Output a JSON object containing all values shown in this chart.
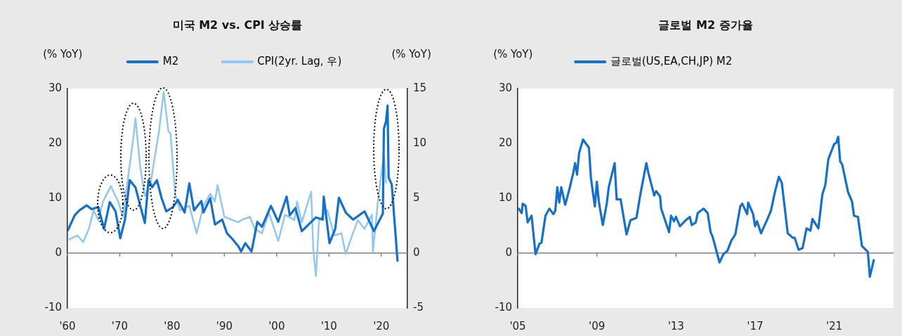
{
  "chart_data": [
    {
      "type": "line",
      "title": "미국 M2 vs. CPI 상승률",
      "ylabel": "(% YoY)",
      "y2label": "(% YoY)",
      "legend": "top",
      "xlim": [
        1960,
        2025
      ],
      "xticks": [
        {
          "value": 1960,
          "label": "'60"
        },
        {
          "value": 1970,
          "label": "'70"
        },
        {
          "value": 1980,
          "label": "'80"
        },
        {
          "value": 1990,
          "label": "'90"
        },
        {
          "value": 2000,
          "label": "'00"
        },
        {
          "value": 2010,
          "label": "'10"
        },
        {
          "value": 2020,
          "label": "'20"
        }
      ],
      "ylim": [
        -10,
        30
      ],
      "yticks": [
        -10,
        0,
        10,
        20,
        30
      ],
      "y2lim": [
        -5,
        15
      ],
      "y2ticks": [
        -5,
        0,
        5,
        10,
        15
      ],
      "ref_lines": [
        {
          "axis": "y",
          "value": 0,
          "color": "#808080"
        }
      ],
      "series": [
        {
          "name": "M2",
          "color": "#1470c8",
          "x": [
            1960.1,
            1961.4,
            1962.3,
            1963.7,
            1964.6,
            1965.9,
            1967.0,
            1968.1,
            1969.2,
            1970.1,
            1971.0,
            1971.9,
            1973.0,
            1973.9,
            1974.8,
            1975.5,
            1976.2,
            1977.1,
            1978.0,
            1978.9,
            1980.2,
            1981.1,
            1982.4,
            1983.3,
            1984.2,
            1985.6,
            1986.0,
            1987.3,
            1988.2,
            1989.6,
            1990.5,
            1991.6,
            1992.7,
            1993.2,
            1994.0,
            1995.2,
            1996.3,
            1997.2,
            1998.9,
            2000.3,
            2001.9,
            2002.5,
            2003.6,
            2004.8,
            2006.1,
            2007.5,
            2008.8,
            2009.0,
            2010.1,
            2011.2,
            2011.9,
            2013.2,
            2014.6,
            2016.8,
            2018.6,
            2020.3,
            2020.5,
            2020.9,
            2021.2,
            2021.4,
            2022.0,
            2023.1
          ],
          "values": [
            4.2,
            6.9,
            7.8,
            8.7,
            8.0,
            8.4,
            4.4,
            9.3,
            7.6,
            2.7,
            6.1,
            13.3,
            12.0,
            8.7,
            5.5,
            13.3,
            12.0,
            13.3,
            10.0,
            7.6,
            8.4,
            9.7,
            7.4,
            12.7,
            7.8,
            9.5,
            7.4,
            10.0,
            5.2,
            6.1,
            3.6,
            2.5,
            1.2,
            0.3,
            1.8,
            0.3,
            5.7,
            4.8,
            8.6,
            5.7,
            10.3,
            6.9,
            8.2,
            4.0,
            5.2,
            6.5,
            6.1,
            10.3,
            1.8,
            4.4,
            10.1,
            7.4,
            6.1,
            7.6,
            4.0,
            7.2,
            22.7,
            24.0,
            26.9,
            13.8,
            12.5,
            -1.4
          ]
        },
        {
          "name": "CPI(2yr. Lag, 우)",
          "color": "#94c6f2",
          "axis": "y2",
          "x": [
            1960.1,
            1961.9,
            1963.0,
            1964.1,
            1965.0,
            1965.9,
            1966.8,
            1968.3,
            1969.7,
            1970.6,
            1971.7,
            1972.6,
            1973.0,
            1973.9,
            1974.8,
            1975.9,
            1977.5,
            1978.4,
            1979.3,
            1979.7,
            1980.6,
            1981.5,
            1983.3,
            1984.7,
            1986.0,
            1987.3,
            1988.2,
            1988.7,
            1990.0,
            1992.7,
            1993.2,
            1994.9,
            1995.8,
            1997.2,
            1998.5,
            2000.3,
            2001.6,
            2003.4,
            2003.9,
            2004.8,
            2006.6,
            2007.0,
            2007.5,
            2008.1,
            2009.7,
            2011.0,
            2012.4,
            2013.2,
            2014.2,
            2015.5,
            2016.8,
            2018.2,
            2018.4,
            2019.5,
            2020.5,
            2020.9
          ],
          "values": [
            1.2,
            1.6,
            1.0,
            2.2,
            3.9,
            3.0,
            4.7,
            6.1,
            4.7,
            3.3,
            7.3,
            10.5,
            12.3,
            7.9,
            5.2,
            6.4,
            11.1,
            14.7,
            11.1,
            10.9,
            5.4,
            3.9,
            4.3,
            1.8,
            4.3,
            5.4,
            4.7,
            6.2,
            3.3,
            2.8,
            3.0,
            3.3,
            2.2,
            1.8,
            3.7,
            1.1,
            3.5,
            3.0,
            4.7,
            2.8,
            5.6,
            0.3,
            -2.1,
            3.0,
            3.9,
            1.6,
            1.8,
            -0.1,
            1.3,
            3.0,
            2.2,
            3.5,
            0.1,
            5.4,
            9.0,
            6.4
          ]
        }
      ]
    },
    {
      "type": "line",
      "title": "글로벌 M2 증가율",
      "ylabel": "(% YoY)",
      "legend": "top",
      "xlim": [
        2005,
        2024
      ],
      "xticks": [
        {
          "value": 2005,
          "label": "'05"
        },
        {
          "value": 2009,
          "label": "'09"
        },
        {
          "value": 2013,
          "label": "'13"
        },
        {
          "value": 2017,
          "label": "'17"
        },
        {
          "value": 2021,
          "label": "'21"
        }
      ],
      "ylim": [
        -10,
        30
      ],
      "yticks": [
        -10,
        0,
        10,
        20,
        30
      ],
      "ref_lines": [
        {
          "axis": "y",
          "value": 0,
          "color": "#808080"
        }
      ],
      "series": [
        {
          "name": "글로벌(US,EA,CH,JP) M2",
          "color": "#1470c8",
          "x": [
            2005.05,
            2005.2,
            2005.25,
            2005.4,
            2005.5,
            2005.7,
            2005.9,
            2006.1,
            2006.2,
            2006.4,
            2006.6,
            2006.8,
            2006.9,
            2007.0,
            2007.1,
            2007.2,
            2007.4,
            2007.6,
            2007.8,
            2007.9,
            2008.0,
            2008.1,
            2008.3,
            2008.6,
            2008.7,
            2008.9,
            2009.0,
            2009.1,
            2009.3,
            2009.5,
            2009.6,
            2009.9,
            2010.0,
            2010.2,
            2010.5,
            2010.7,
            2011.0,
            2011.2,
            2011.5,
            2011.6,
            2011.9,
            2012.0,
            2012.2,
            2012.25,
            2012.65,
            2012.75,
            2012.9,
            2013.0,
            2013.2,
            2013.5,
            2013.7,
            2013.8,
            2014.0,
            2014.1,
            2014.4,
            2014.6,
            2014.75,
            2014.85,
            2015.2,
            2015.4,
            2015.6,
            2015.8,
            2016.0,
            2016.25,
            2016.35,
            2016.6,
            2016.65,
            2016.9,
            2017.0,
            2017.1,
            2017.3,
            2017.6,
            2017.8,
            2018.0,
            2018.2,
            2018.35,
            2018.65,
            2018.9,
            2019.0,
            2019.2,
            2019.4,
            2019.6,
            2019.8,
            2019.9,
            2020.2,
            2020.4,
            2020.55,
            2020.7,
            2021.0,
            2021.1,
            2021.2,
            2021.3,
            2021.4,
            2021.7,
            2021.9,
            2022.0,
            2022.2,
            2022.4,
            2022.7,
            2022.8,
            2023.0
          ],
          "values": [
            8.1,
            7.3,
            9.0,
            8.6,
            5.6,
            6.8,
            -0.2,
            1.7,
            1.9,
            6.8,
            8.1,
            7.1,
            7.7,
            12.0,
            9.2,
            12.0,
            8.8,
            11.5,
            14.5,
            16.4,
            14.3,
            18.2,
            20.7,
            19.2,
            13.7,
            8.5,
            13.0,
            9.4,
            5.1,
            9.0,
            12.0,
            16.4,
            9.8,
            9.8,
            3.4,
            6.0,
            6.4,
            10.7,
            16.4,
            14.7,
            10.5,
            11.3,
            10.3,
            8.1,
            3.8,
            6.8,
            5.8,
            6.6,
            4.9,
            6.0,
            6.6,
            5.1,
            5.6,
            7.3,
            8.1,
            7.3,
            3.8,
            3.0,
            -1.7,
            -0.2,
            0.4,
            2.3,
            3.4,
            8.5,
            9.0,
            7.1,
            9.2,
            7.1,
            4.9,
            5.8,
            3.6,
            6.0,
            7.7,
            11.1,
            13.9,
            12.8,
            3.6,
            2.8,
            2.8,
            0.6,
            0.9,
            4.5,
            4.1,
            6.2,
            4.5,
            10.7,
            12.4,
            17.1,
            19.9,
            20.1,
            21.2,
            16.7,
            16.2,
            11.1,
            9.4,
            6.8,
            6.6,
            1.3,
            0.2,
            -4.3,
            -1.3
          ]
        }
      ]
    }
  ]
}
